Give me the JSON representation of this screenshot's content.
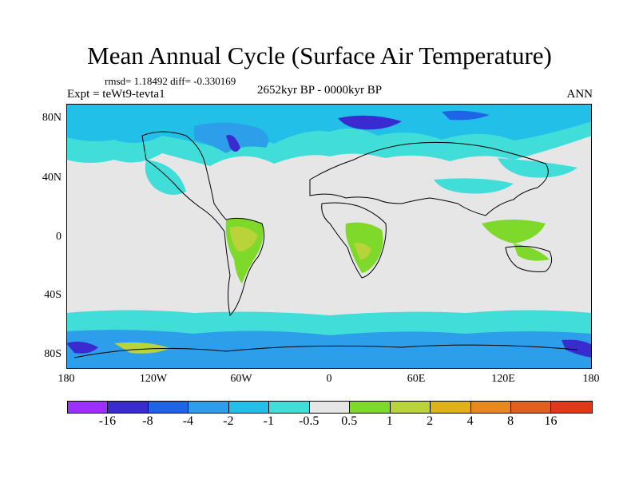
{
  "figure": {
    "title": "Mean Annual Cycle (Surface Air Temperature)",
    "stats": "rmsd= 1.18492 diff= -0.330169",
    "experiment": "Expt = teWt9-tevta1",
    "period": "2652kyr BP - 0000kyr BP",
    "season": "ANN"
  },
  "axes": {
    "lat_labels": [
      "80N",
      "40N",
      "0",
      "40S",
      "80S"
    ],
    "lon_labels": [
      "180",
      "120W",
      "60W",
      "0",
      "60E",
      "120E",
      "180"
    ]
  },
  "colorbar": {
    "labels": [
      "-16",
      "-8",
      "-4",
      "-2",
      "-1",
      "-0.5",
      "0.5",
      "1",
      "2",
      "4",
      "8",
      "16"
    ],
    "colors": [
      "#9b30ff",
      "#3a2bd1",
      "#1f63e6",
      "#2d9fea",
      "#22c0e8",
      "#41ddd9",
      "#e6e6e6",
      "#7fd92a",
      "#b8d43a",
      "#e0b21a",
      "#e8891f",
      "#e2601e",
      "#e0381a"
    ]
  },
  "map_colors": {
    "ocean": "#e6e6e6",
    "light_cyan": "#41ddd9",
    "cyan": "#22c0e8",
    "blue": "#2d9fea",
    "dark_blue": "#1f63e6",
    "purple": "#3a2bd1",
    "green": "#7fd92a",
    "olive": "#b8d43a",
    "orange": "#e0b21a"
  }
}
